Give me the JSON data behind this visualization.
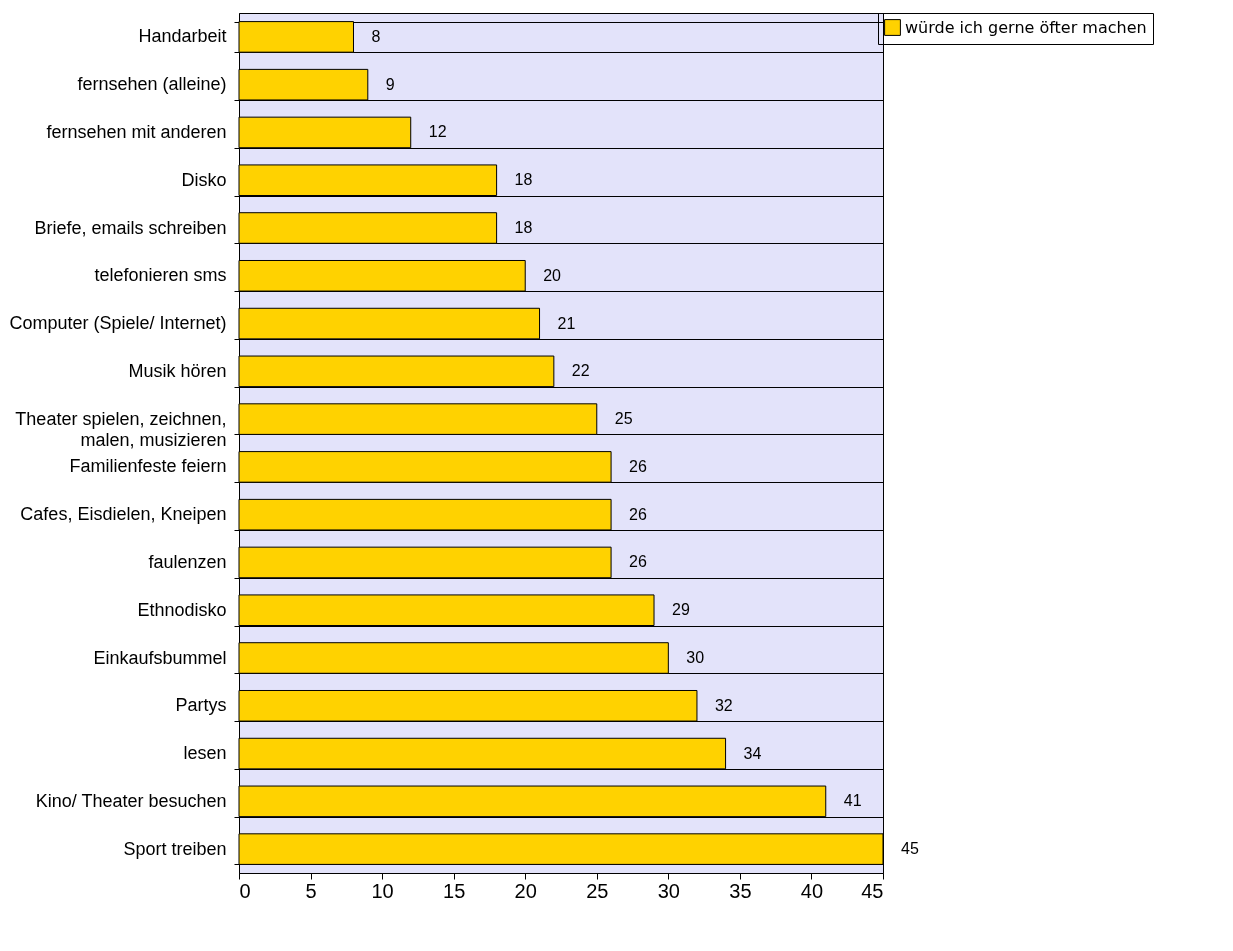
{
  "chart_data": {
    "type": "bar",
    "orientation": "horizontal",
    "categories": [
      "Handarbeit",
      "fernsehen (alleine)",
      "fernsehen mit anderen",
      "Disko",
      "Briefe, emails schreiben",
      "telefonieren  sms",
      "Computer (Spiele/ Internet)",
      "Musik hören",
      "Theater spielen, zeichnen, malen, musizieren",
      "Familienfeste feiern",
      "Cafes, Eisdielen, Kneipen",
      "faulenzen",
      "Ethnodisko",
      "Einkaufsbummel",
      "Partys",
      "lesen",
      "Kino/ Theater besuchen",
      "Sport treiben"
    ],
    "series": [
      {
        "name": "würde ich gerne öfter machen",
        "color": "#ffd200",
        "values": [
          8,
          9,
          12,
          18,
          18,
          20,
          21,
          22,
          25,
          26,
          26,
          26,
          29,
          30,
          32,
          34,
          41,
          45
        ]
      }
    ],
    "xlim": [
      0,
      45
    ],
    "xticks": [
      0,
      5,
      10,
      15,
      20,
      25,
      30,
      35,
      40,
      45
    ],
    "data_labels": true,
    "grid": "y",
    "legend": "right"
  }
}
